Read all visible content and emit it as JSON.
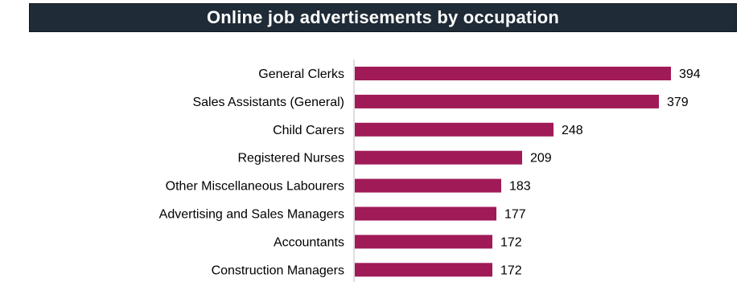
{
  "header": {
    "title": "Online job advertisements by occupation"
  },
  "colors": {
    "title_background": "#1f2b36",
    "title_text": "#ffffff",
    "bar": "#a01a58",
    "axis": "#bfbfbf"
  },
  "chart_data": {
    "type": "bar",
    "orientation": "horizontal",
    "title": "Online job advertisements by occupation",
    "xlabel": "",
    "ylabel": "",
    "categories": [
      "General Clerks",
      "Sales Assistants (General)",
      "Child Carers",
      "Registered Nurses",
      "Other Miscellaneous Labourers",
      "Advertising and Sales Managers",
      "Accountants",
      "Construction Managers"
    ],
    "values": [
      394,
      379,
      248,
      209,
      183,
      177,
      172,
      172
    ],
    "xlim": [
      0,
      400
    ],
    "grid": false,
    "legend": "none",
    "data_labels": true
  }
}
